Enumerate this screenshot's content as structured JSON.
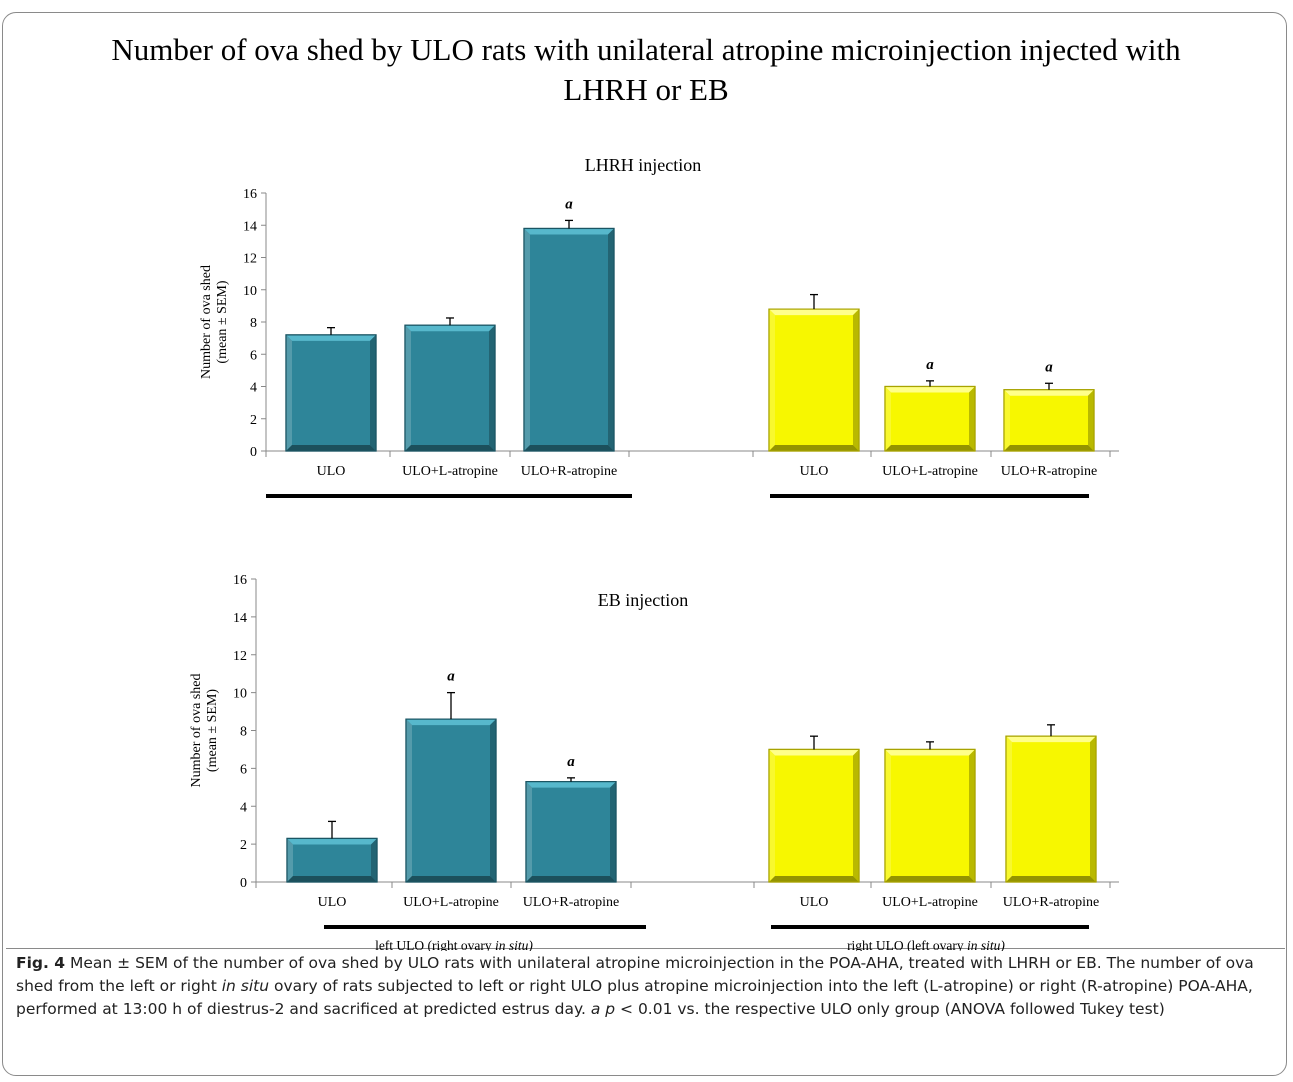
{
  "title": "Number of ova shed by ULO rats with unilateral atropine microinjection injected with LHRH or EB",
  "colors": {
    "left_group": "#2e8599",
    "left_group_dark": "#1b5563",
    "left_group_light": "#57b8cc",
    "right_group": "#f7f700",
    "right_group_dark": "#a8a300",
    "right_group_light": "#ffff8a"
  },
  "chart_data": [
    {
      "type": "bar",
      "title": "LHRH injection",
      "ylabel_line1": "Number of ova shed",
      "ylabel_line2": "(mean ± SEM)",
      "ylim": [
        0,
        16
      ],
      "yticks": [
        0,
        2,
        4,
        6,
        8,
        10,
        12,
        14,
        16
      ],
      "groups": [
        {
          "label_prefix": "left ULO (right ovary ",
          "label_italic": "in situ)",
          "categories": [
            "ULO",
            "ULO+L-atropine",
            "ULO+R-atropine"
          ],
          "values": [
            7.2,
            7.8,
            13.8
          ],
          "errors": [
            0.45,
            0.45,
            0.5
          ],
          "sig": [
            "",
            "",
            "a"
          ]
        },
        {
          "label_prefix": "right ULO (left ovary ",
          "label_italic": "in situ)",
          "categories": [
            "ULO",
            "ULO+L-atropine",
            "ULO+R-atropine"
          ],
          "values": [
            8.8,
            4.0,
            3.8
          ],
          "errors": [
            0.9,
            0.35,
            0.4
          ],
          "sig": [
            "",
            "a",
            "a"
          ]
        }
      ]
    },
    {
      "type": "bar",
      "title": "EB injection",
      "ylabel_line1": "Number of ova shed",
      "ylabel_line2": "(mean ± SEM)",
      "ylim": [
        0,
        16
      ],
      "yticks": [
        0,
        2,
        4,
        6,
        8,
        10,
        12,
        14,
        16
      ],
      "groups": [
        {
          "label_prefix": "left ULO (right ovary ",
          "label_italic": "in situ)",
          "categories": [
            "ULO",
            "ULO+L-atropine",
            "ULO+R-atropine"
          ],
          "values": [
            2.3,
            8.6,
            5.3
          ],
          "errors": [
            0.9,
            1.4,
            0.2
          ],
          "sig": [
            "",
            "a",
            "a"
          ]
        },
        {
          "label_prefix": "right ULO (left ovary ",
          "label_italic": "in situ)",
          "categories": [
            "ULO",
            "ULO+L-atropine",
            "ULO+R-atropine"
          ],
          "values": [
            7.0,
            7.0,
            7.7
          ],
          "errors": [
            0.7,
            0.4,
            0.6
          ],
          "sig": [
            "",
            "",
            ""
          ]
        }
      ]
    }
  ],
  "caption": {
    "fig_label": "Fig. 4",
    "part1": " Mean ± SEM of the number of ova shed by ULO rats with unilateral atropine microinjection in the POA-AHA, treated with LHRH or EB. The number of ova shed from the left or right ",
    "italic1": "in situ",
    "part2": " ovary of rats subjected to left or right ULO plus atropine microinjection into the left (L-atropine) or right (R-atropine) POA-AHA, performed at 13:00 h of diestrus-2 and sacrificed at predicted estrus day. ",
    "italic2": "a p",
    "part3": " < 0.01 vs. the respective ULO only group (ANOVA followed Tukey test)"
  }
}
